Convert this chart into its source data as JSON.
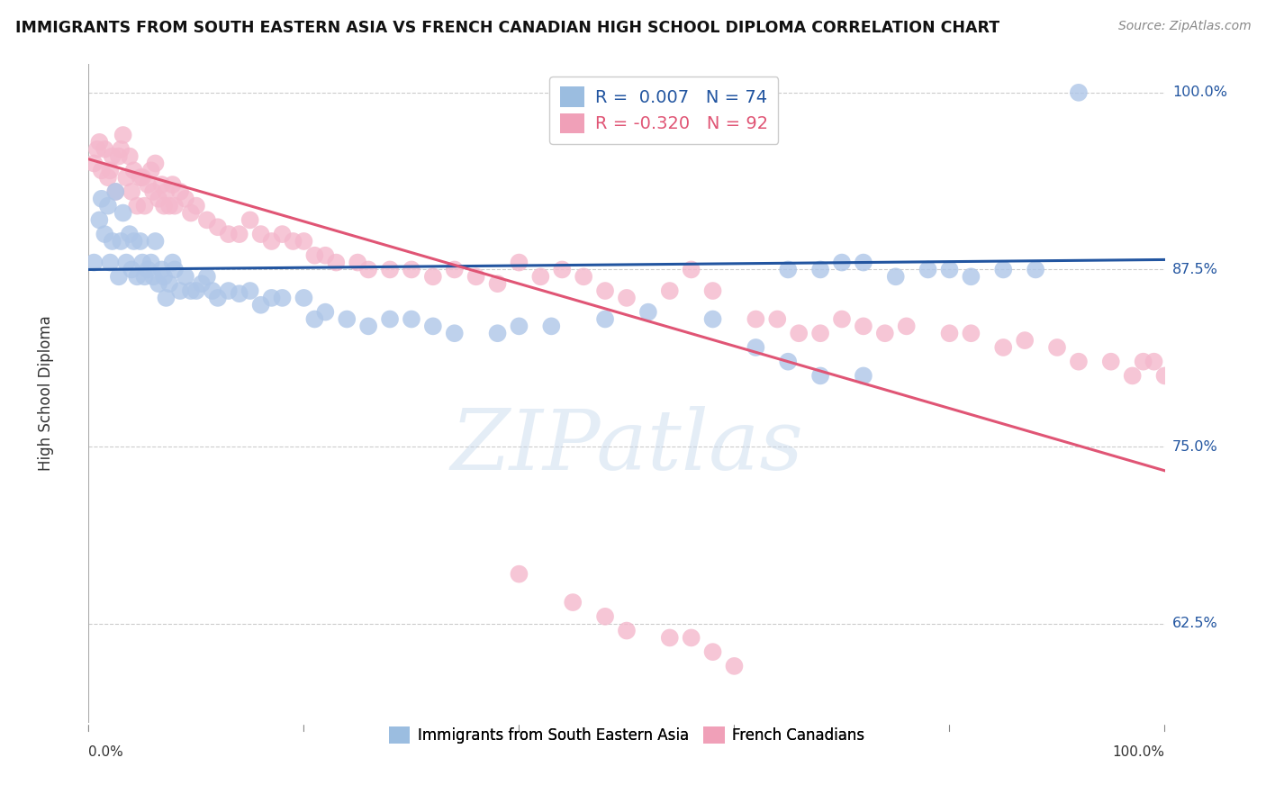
{
  "title": "IMMIGRANTS FROM SOUTH EASTERN ASIA VS FRENCH CANADIAN HIGH SCHOOL DIPLOMA CORRELATION CHART",
  "source": "Source: ZipAtlas.com",
  "ylabel": "High School Diploma",
  "ytick_labels": [
    "62.5%",
    "75.0%",
    "87.5%",
    "100.0%"
  ],
  "ytick_values": [
    0.625,
    0.75,
    0.875,
    1.0
  ],
  "legend_blue_r_val": "0.007",
  "legend_blue_n": "N = 74",
  "legend_pink_r_val": "-0.320",
  "legend_pink_n": "N = 92",
  "blue_dot_color": "#aec6e8",
  "pink_dot_color": "#f4b8cc",
  "blue_line_color": "#2255a0",
  "pink_line_color": "#e05575",
  "legend_blue_color": "#9bbde0",
  "legend_pink_color": "#f0a0b8",
  "blue_points_x": [
    0.005,
    0.01,
    0.012,
    0.015,
    0.018,
    0.02,
    0.022,
    0.025,
    0.028,
    0.03,
    0.032,
    0.035,
    0.038,
    0.04,
    0.042,
    0.045,
    0.048,
    0.05,
    0.052,
    0.055,
    0.058,
    0.06,
    0.062,
    0.065,
    0.068,
    0.07,
    0.072,
    0.075,
    0.078,
    0.08,
    0.085,
    0.09,
    0.095,
    0.1,
    0.105,
    0.11,
    0.115,
    0.12,
    0.13,
    0.14,
    0.15,
    0.16,
    0.17,
    0.18,
    0.2,
    0.21,
    0.22,
    0.24,
    0.26,
    0.28,
    0.3,
    0.32,
    0.34,
    0.38,
    0.4,
    0.43,
    0.48,
    0.52,
    0.58,
    0.62,
    0.65,
    0.68,
    0.72,
    0.65,
    0.68,
    0.7,
    0.72,
    0.75,
    0.78,
    0.8,
    0.82,
    0.85,
    0.88,
    0.92
  ],
  "blue_points_y": [
    0.88,
    0.91,
    0.925,
    0.9,
    0.92,
    0.88,
    0.895,
    0.93,
    0.87,
    0.895,
    0.915,
    0.88,
    0.9,
    0.875,
    0.895,
    0.87,
    0.895,
    0.88,
    0.87,
    0.875,
    0.88,
    0.87,
    0.895,
    0.865,
    0.875,
    0.87,
    0.855,
    0.865,
    0.88,
    0.875,
    0.86,
    0.87,
    0.86,
    0.86,
    0.865,
    0.87,
    0.86,
    0.855,
    0.86,
    0.858,
    0.86,
    0.85,
    0.855,
    0.855,
    0.855,
    0.84,
    0.845,
    0.84,
    0.835,
    0.84,
    0.84,
    0.835,
    0.83,
    0.83,
    0.835,
    0.835,
    0.84,
    0.845,
    0.84,
    0.82,
    0.81,
    0.8,
    0.8,
    0.875,
    0.875,
    0.88,
    0.88,
    0.87,
    0.875,
    0.875,
    0.87,
    0.875,
    0.875,
    1.0
  ],
  "pink_points_x": [
    0.005,
    0.008,
    0.01,
    0.012,
    0.015,
    0.018,
    0.02,
    0.022,
    0.025,
    0.028,
    0.03,
    0.032,
    0.035,
    0.038,
    0.04,
    0.042,
    0.045,
    0.048,
    0.05,
    0.052,
    0.055,
    0.058,
    0.06,
    0.062,
    0.065,
    0.068,
    0.07,
    0.072,
    0.075,
    0.078,
    0.08,
    0.085,
    0.09,
    0.095,
    0.1,
    0.11,
    0.12,
    0.13,
    0.14,
    0.15,
    0.16,
    0.17,
    0.18,
    0.19,
    0.2,
    0.21,
    0.22,
    0.23,
    0.25,
    0.26,
    0.28,
    0.3,
    0.32,
    0.34,
    0.36,
    0.38,
    0.4,
    0.42,
    0.44,
    0.46,
    0.48,
    0.5,
    0.54,
    0.56,
    0.58,
    0.62,
    0.64,
    0.66,
    0.68,
    0.7,
    0.72,
    0.74,
    0.76,
    0.8,
    0.82,
    0.85,
    0.87,
    0.9,
    0.92,
    0.95,
    0.97,
    0.98,
    0.99,
    1.0,
    0.4,
    0.45,
    0.48,
    0.5,
    0.54,
    0.56,
    0.58,
    0.6
  ],
  "pink_points_y": [
    0.95,
    0.96,
    0.965,
    0.945,
    0.96,
    0.94,
    0.945,
    0.955,
    0.93,
    0.955,
    0.96,
    0.97,
    0.94,
    0.955,
    0.93,
    0.945,
    0.92,
    0.94,
    0.94,
    0.92,
    0.935,
    0.945,
    0.93,
    0.95,
    0.925,
    0.935,
    0.92,
    0.93,
    0.92,
    0.935,
    0.92,
    0.93,
    0.925,
    0.915,
    0.92,
    0.91,
    0.905,
    0.9,
    0.9,
    0.91,
    0.9,
    0.895,
    0.9,
    0.895,
    0.895,
    0.885,
    0.885,
    0.88,
    0.88,
    0.875,
    0.875,
    0.875,
    0.87,
    0.875,
    0.87,
    0.865,
    0.88,
    0.87,
    0.875,
    0.87,
    0.86,
    0.855,
    0.86,
    0.875,
    0.86,
    0.84,
    0.84,
    0.83,
    0.83,
    0.84,
    0.835,
    0.83,
    0.835,
    0.83,
    0.83,
    0.82,
    0.825,
    0.82,
    0.81,
    0.81,
    0.8,
    0.81,
    0.81,
    0.8,
    0.66,
    0.64,
    0.63,
    0.62,
    0.615,
    0.615,
    0.605,
    0.595
  ],
  "xlim": [
    0.0,
    1.0
  ],
  "ylim": [
    0.555,
    1.02
  ],
  "blue_line_x": [
    0.0,
    1.0
  ],
  "blue_line_y": [
    0.875,
    0.882
  ],
  "pink_line_x": [
    0.0,
    1.0
  ],
  "pink_line_y": [
    0.953,
    0.733
  ],
  "watermark_text": "ZIPatlas",
  "grid_color": "#cccccc",
  "bottom_legend_labels": [
    "Immigrants from South Eastern Asia",
    "French Canadians"
  ]
}
